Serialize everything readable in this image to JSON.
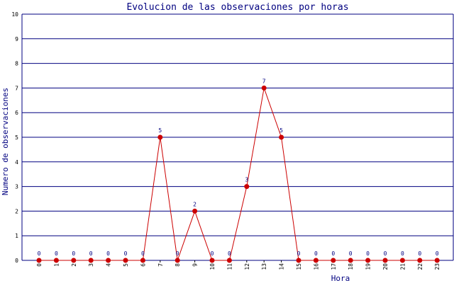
{
  "chart_data": {
    "type": "line",
    "title": "Evolucion de las observaciones por horas",
    "xlabel": "Hora",
    "ylabel": "Numero de observaciones",
    "categories": [
      "0",
      "1",
      "2",
      "3",
      "4",
      "5",
      "6",
      "7",
      "8",
      "9",
      "10",
      "11",
      "12",
      "13",
      "14",
      "15",
      "16",
      "17",
      "18",
      "19",
      "20",
      "21",
      "22",
      "23"
    ],
    "series": [
      {
        "values": [
          0,
          0,
          0,
          0,
          0,
          0,
          0,
          5,
          0,
          2,
          0,
          0,
          3,
          7,
          5,
          0,
          0,
          0,
          0,
          0,
          0,
          0,
          0,
          0
        ]
      }
    ],
    "ylim": [
      0,
      10
    ],
    "yticks": [
      "0",
      "1",
      "2",
      "3",
      "4",
      "5",
      "6",
      "7",
      "8",
      "9",
      "10"
    ],
    "grid": true,
    "colors": {
      "line": "#cc0000",
      "marker": "#cc0000",
      "grid": "#000080",
      "title": "#000080",
      "data_label": "#000080"
    }
  }
}
